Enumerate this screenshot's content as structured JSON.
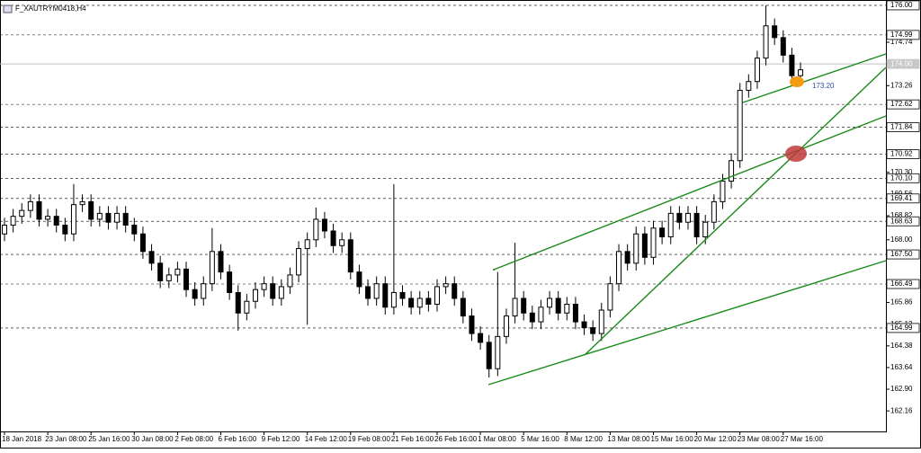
{
  "chart_data": {
    "type": "candlestick",
    "title": "F_XAUTRYM0418,H4",
    "categories": [
      "18 Jan 2018",
      null,
      null,
      null,
      null,
      "23 Jan 08:00",
      null,
      null,
      null,
      null,
      "25 Jan 16:00",
      null,
      null,
      null,
      null,
      "30 Jan 08:00",
      null,
      null,
      null,
      null,
      "2 Feb 08:00",
      null,
      null,
      null,
      null,
      "6 Feb 16:00",
      null,
      null,
      null,
      null,
      "9 Feb 12:00",
      null,
      null,
      null,
      null,
      "14 Feb 12:00",
      null,
      null,
      null,
      null,
      "19 Feb 08:00",
      null,
      null,
      null,
      null,
      "21 Feb 16:00",
      null,
      null,
      null,
      null,
      "26 Feb 16:00",
      null,
      null,
      null,
      null,
      "1 Mar 08:00",
      null,
      null,
      null,
      null,
      "5 Mar 16:00",
      null,
      null,
      null,
      null,
      "8 Mar 12:00",
      null,
      null,
      null,
      null,
      "13 Mar 08:00",
      null,
      null,
      null,
      null,
      "15 Mar 16:00",
      null,
      null,
      null,
      null,
      "20 Mar 12:00",
      null,
      null,
      null,
      null,
      "23 Mar 08:00",
      null,
      null,
      null,
      null,
      "27 Mar 16:00",
      null,
      null
    ],
    "open": [
      168.2,
      168.5,
      168.8,
      169.0,
      169.3,
      168.7,
      168.8,
      168.5,
      168.2,
      169.2,
      169.3,
      168.7,
      168.9,
      168.6,
      168.9,
      168.5,
      168.2,
      167.6,
      167.2,
      166.6,
      166.8,
      167.0,
      166.3,
      166.0,
      166.5,
      167.6,
      166.9,
      166.2,
      165.5,
      165.9,
      166.3,
      166.5,
      166.0,
      166.4,
      166.8,
      167.7,
      168.0,
      168.7,
      168.3,
      167.8,
      168.0,
      166.9,
      166.4,
      166.0,
      166.5,
      165.7,
      166.2,
      166.0,
      165.7,
      166.0,
      165.8,
      166.4,
      166.5,
      166.0,
      165.4,
      164.8,
      164.5,
      163.6,
      164.7,
      165.4,
      166.0,
      165.5,
      165.2,
      165.7,
      166.0,
      165.5,
      165.8,
      165.2,
      165.0,
      164.8,
      165.6,
      166.5,
      167.6,
      167.2,
      168.2,
      167.4,
      168.4,
      168.1,
      168.9,
      168.6,
      168.9,
      168.1,
      168.6,
      169.3,
      170.0,
      170.7,
      173.1,
      173.4,
      174.2,
      175.3,
      174.9,
      174.3,
      173.6
    ],
    "high": [
      168.75,
      169.05,
      169.25,
      169.55,
      169.55,
      169.05,
      169.05,
      168.75,
      169.9,
      169.55,
      169.55,
      169.15,
      169.15,
      169.15,
      169.15,
      168.75,
      168.45,
      167.85,
      167.45,
      167.05,
      167.25,
      167.25,
      166.55,
      166.75,
      168.4,
      167.85,
      167.15,
      166.45,
      166.15,
      166.55,
      166.75,
      166.75,
      166.65,
      167.05,
      167.95,
      168.25,
      169.1,
      168.95,
      168.55,
      168.25,
      168.25,
      167.15,
      166.65,
      166.75,
      166.75,
      169.9,
      166.45,
      166.25,
      166.25,
      166.25,
      166.65,
      166.75,
      166.75,
      166.25,
      165.65,
      165.05,
      164.75,
      166.9,
      165.65,
      167.9,
      166.25,
      165.75,
      165.95,
      166.25,
      166.25,
      166.05,
      166.05,
      165.45,
      165.25,
      165.85,
      166.75,
      167.85,
      167.85,
      168.45,
      168.45,
      168.65,
      168.65,
      169.15,
      169.15,
      169.15,
      169.15,
      168.85,
      169.55,
      170.25,
      170.95,
      173.35,
      173.65,
      174.45,
      176.0,
      175.55,
      175.15,
      174.55,
      174.05
    ],
    "low": [
      167.95,
      168.25,
      168.55,
      168.75,
      168.45,
      168.45,
      168.25,
      167.95,
      167.95,
      168.95,
      168.45,
      168.45,
      168.35,
      168.35,
      168.25,
      167.95,
      167.35,
      166.95,
      166.35,
      166.35,
      166.55,
      166.05,
      165.75,
      165.75,
      166.25,
      166.65,
      165.95,
      164.9,
      165.25,
      165.65,
      166.05,
      165.75,
      165.75,
      166.15,
      166.55,
      165.1,
      167.75,
      168.05,
      167.55,
      167.55,
      166.65,
      166.15,
      165.75,
      165.75,
      165.45,
      165.45,
      165.75,
      165.45,
      165.45,
      165.55,
      165.55,
      166.15,
      165.75,
      165.15,
      164.55,
      164.25,
      163.3,
      163.35,
      164.45,
      165.15,
      165.25,
      164.95,
      164.95,
      165.45,
      165.25,
      165.25,
      164.95,
      164.75,
      164.55,
      164.55,
      165.35,
      166.25,
      166.95,
      166.95,
      167.15,
      167.15,
      167.85,
      167.85,
      168.35,
      168.35,
      167.85,
      167.85,
      168.35,
      169.05,
      169.75,
      170.45,
      172.85,
      173.15,
      173.95,
      174.65,
      174.05,
      173.35,
      173.35
    ],
    "close": [
      168.5,
      168.8,
      169.0,
      169.3,
      168.7,
      168.8,
      168.5,
      168.2,
      169.2,
      169.3,
      168.7,
      168.9,
      168.6,
      168.9,
      168.5,
      168.2,
      167.6,
      167.2,
      166.6,
      166.8,
      167.0,
      166.3,
      166.0,
      166.5,
      167.6,
      166.9,
      166.2,
      165.5,
      165.9,
      166.3,
      166.5,
      166.0,
      166.4,
      166.8,
      167.7,
      168.0,
      168.7,
      168.3,
      167.8,
      168.0,
      166.9,
      166.4,
      166.0,
      166.5,
      165.7,
      166.2,
      166.0,
      165.7,
      166.0,
      165.8,
      166.4,
      166.5,
      166.0,
      165.4,
      164.8,
      164.5,
      163.6,
      164.7,
      165.4,
      166.0,
      165.5,
      165.2,
      165.7,
      166.0,
      165.5,
      165.8,
      165.2,
      165.0,
      164.8,
      165.6,
      166.5,
      167.6,
      167.2,
      168.2,
      167.4,
      168.4,
      168.1,
      168.9,
      168.6,
      168.9,
      168.1,
      168.6,
      169.3,
      170.0,
      170.7,
      173.1,
      173.4,
      174.2,
      175.3,
      174.9,
      174.3,
      173.6,
      173.8
    ],
    "ylim": [
      161.46,
      176.09
    ],
    "yticks": [
      174.74,
      173.26,
      {
        "value": 170.3,
        "label": "170.30"
      },
      169.56,
      168.82,
      {
        "value": 168,
        "label": "168.00"
      },
      165.86,
      165.12,
      164.38,
      163.64,
      {
        "value": 162.9,
        "label": "162.90"
      },
      162.16
    ],
    "levels": [
      {
        "value": 176,
        "label": "176.00"
      },
      174.99,
      {
        "value": 174,
        "label": "174.00"
      },
      172.62,
      171.84,
      170.92,
      {
        "value": 170.1,
        "label": "170.10"
      },
      169.41,
      168.63,
      {
        "value": 167.5,
        "label": "167.50"
      },
      166.49,
      164.99
    ],
    "current_level": 2,
    "annotation": "173.20",
    "up_color": "#ffffff",
    "down_color": "#000000",
    "line_color": "#000000"
  }
}
